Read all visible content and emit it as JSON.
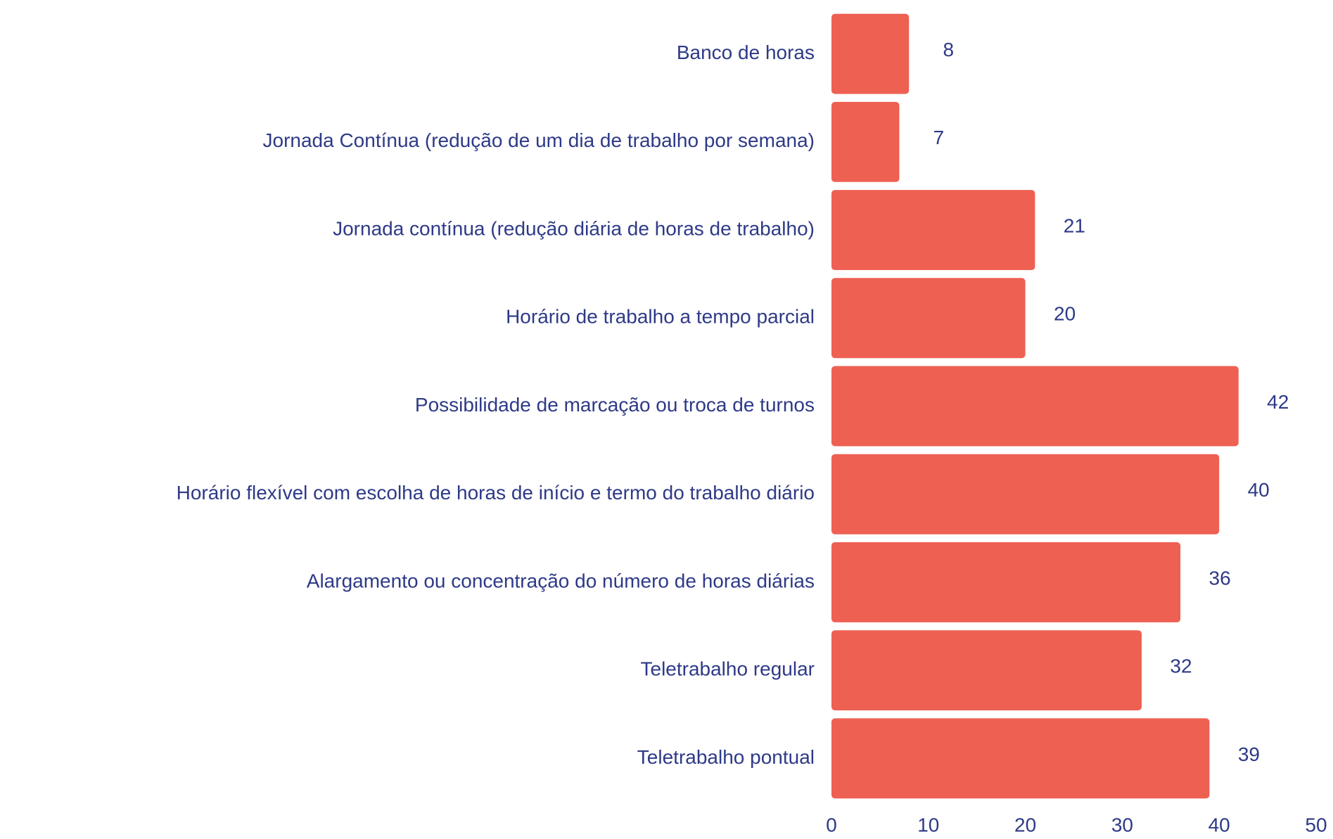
{
  "chart_data": {
    "type": "barh",
    "categories": [
      "Banco de horas",
      "Jornada Contínua (redução de um dia de trabalho por semana)",
      "Jornada contínua (redução diária de horas de trabalho)",
      "Horário de trabalho a tempo parcial",
      "Possibilidade de marcação ou troca de turnos",
      "Horário flexível com escolha de horas de início e termo do trabalho diário",
      "Alargamento ou concentração do número de horas diárias",
      "Teletrabalho regular",
      "Teletrabalho pontual"
    ],
    "values": [
      8,
      7,
      21,
      20,
      42,
      40,
      36,
      32,
      39
    ],
    "color": "#ee6052",
    "xlim": [
      0,
      50
    ],
    "xticks": [
      0,
      10,
      20,
      30,
      40,
      50
    ],
    "grid": false
  }
}
